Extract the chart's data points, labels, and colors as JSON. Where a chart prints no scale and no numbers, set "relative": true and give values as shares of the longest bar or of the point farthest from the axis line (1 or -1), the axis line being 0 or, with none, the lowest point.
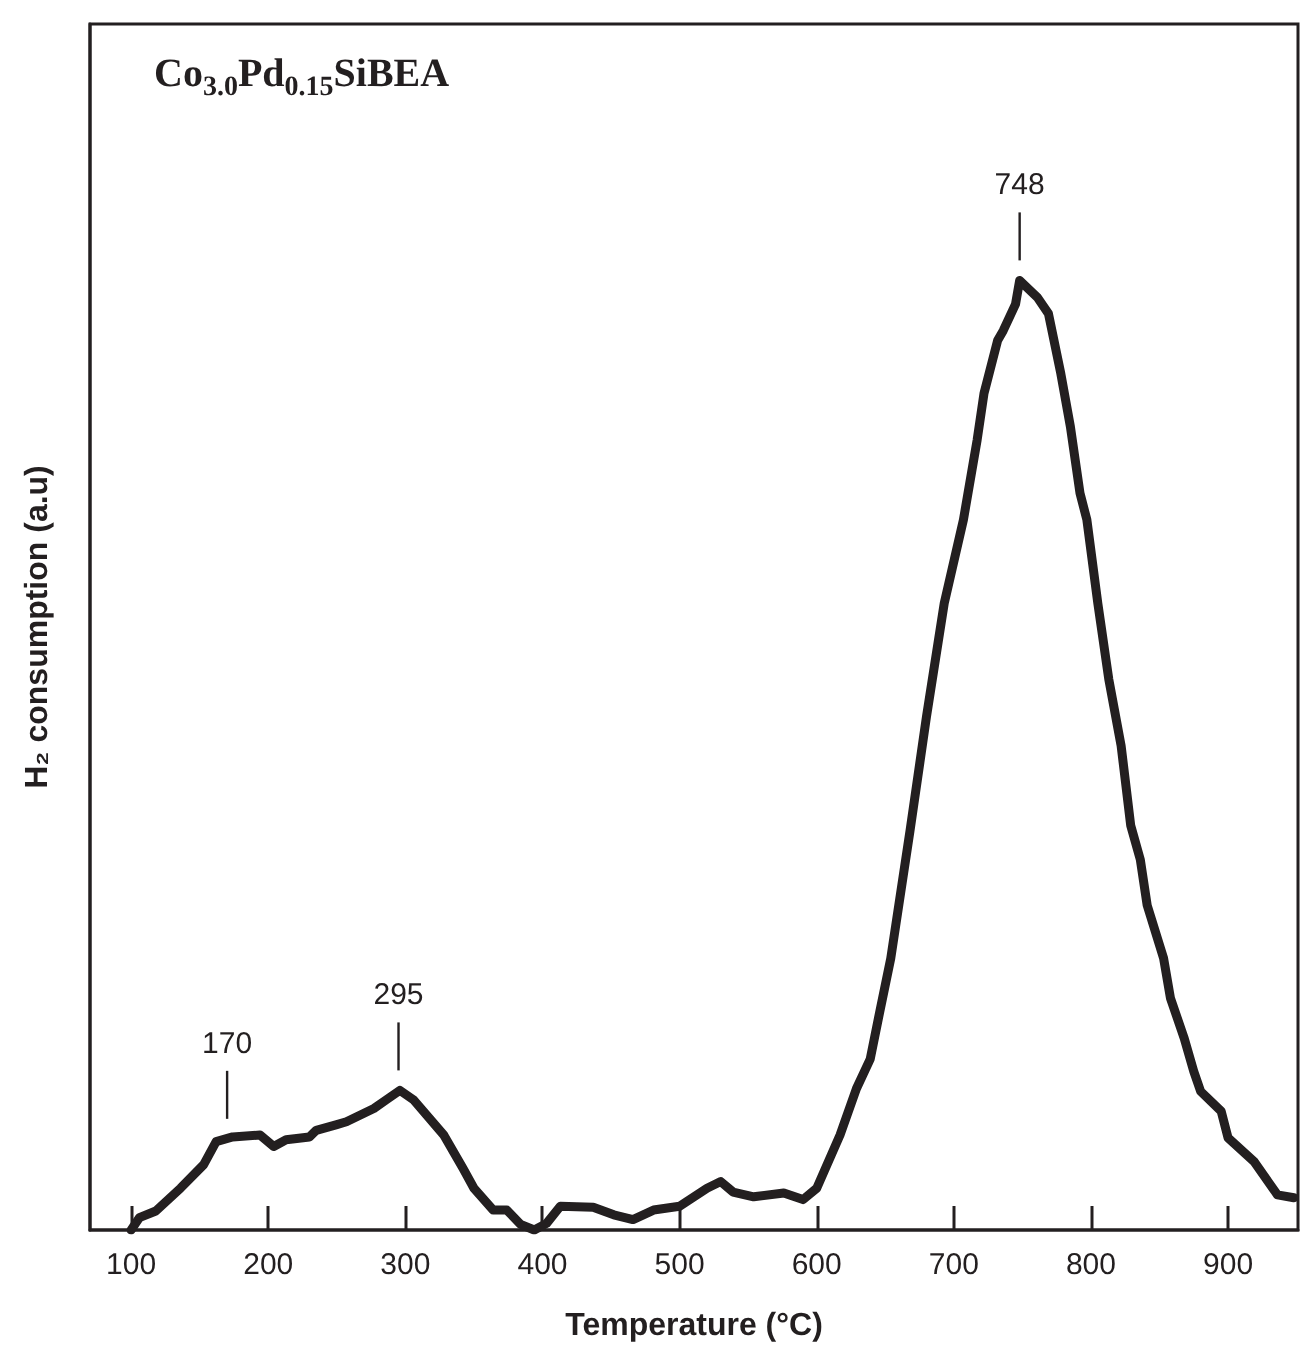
{
  "chart_data": {
    "type": "line",
    "title": "Co$_{3.0}$Pd$_{0.15}$SiBEA",
    "xlabel": "Temperature (°C)",
    "ylabel": "H₂ consumption (a.u)",
    "relative": true,
    "xlim": [
      70,
      951
    ],
    "xticks": [
      100,
      200,
      300,
      400,
      500,
      600,
      700,
      800,
      900
    ],
    "marker": "none",
    "line_style": "solid",
    "annotations": [
      {
        "text": "170",
        "x": 170,
        "y": 0.096
      },
      {
        "text": "295",
        "x": 295,
        "y": 0.147
      },
      {
        "text": "748",
        "x": 748,
        "y": 1.0
      }
    ],
    "x": [
      100,
      106,
      118,
      136,
      153,
      162,
      174,
      194,
      204,
      213,
      230,
      235,
      250,
      257,
      277,
      286,
      296,
      306,
      328,
      342,
      350,
      364,
      374,
      384,
      394,
      403,
      413,
      437,
      452,
      466,
      481,
      500,
      520,
      530,
      539,
      554,
      576,
      590,
      600,
      617,
      629,
      639,
      646,
      654,
      668,
      680,
      693,
      707,
      717,
      722,
      732,
      736,
      745,
      748,
      761,
      769,
      778,
      785,
      792,
      797,
      805,
      813,
      822,
      829,
      836,
      841,
      853,
      858,
      868,
      875,
      880,
      895,
      900,
      919,
      936,
      948
    ],
    "series": [
      {
        "color": "#231f20",
        "values": [
          0,
          0.013,
          0.02,
          0.044,
          0.069,
          0.093,
          0.098,
          0.1,
          0.088,
          0.095,
          0.098,
          0.105,
          0.111,
          0.114,
          0.128,
          0.137,
          0.147,
          0.137,
          0.1,
          0.065,
          0.044,
          0.021,
          0.021,
          0.006,
          0,
          0.007,
          0.025,
          0.024,
          0.016,
          0.011,
          0.021,
          0.025,
          0.044,
          0.051,
          0.04,
          0.035,
          0.039,
          0.032,
          0.044,
          0.1,
          0.149,
          0.18,
          0.23,
          0.286,
          0.42,
          0.54,
          0.66,
          0.748,
          0.832,
          0.881,
          0.937,
          0.947,
          0.975,
          1.0,
          0.982,
          0.965,
          0.902,
          0.846,
          0.776,
          0.748,
          0.66,
          0.58,
          0.51,
          0.426,
          0.39,
          0.342,
          0.286,
          0.244,
          0.202,
          0.167,
          0.146,
          0.125,
          0.097,
          0.072,
          0.037,
          0.034
        ]
      }
    ]
  }
}
